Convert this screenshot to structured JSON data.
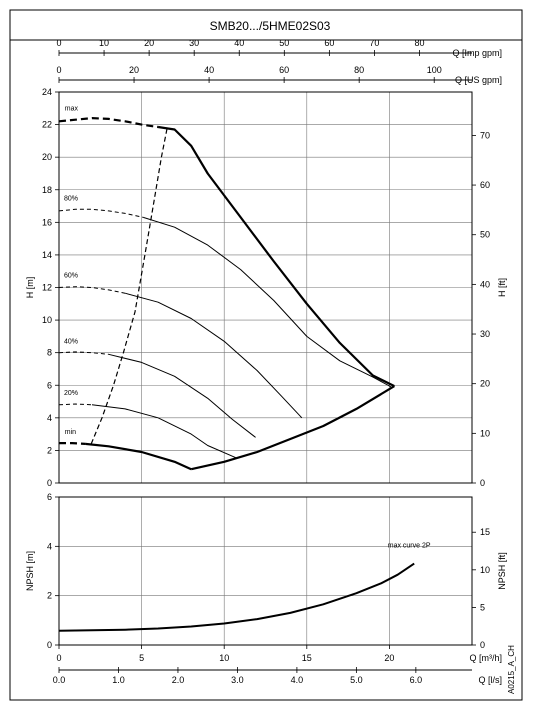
{
  "title": "SMB20.../5HME02S03",
  "code": "A0215_A_CH",
  "chart_data": [
    {
      "type": "line",
      "name": "head-chart",
      "x_axis_primary": {
        "label": "Q [m³/h]",
        "range": [
          0,
          25
        ],
        "ticks": [
          0,
          5,
          10,
          15,
          20
        ]
      },
      "top_axes": [
        {
          "label": "Q [Imp gpm]",
          "range": [
            0,
            91.65
          ],
          "ticks": [
            0,
            10,
            20,
            30,
            40,
            50,
            60,
            70,
            80
          ]
        },
        {
          "label": "Q [US gpm]",
          "range": [
            0,
            110.07
          ],
          "ticks": [
            0,
            20,
            40,
            60,
            80,
            100
          ]
        }
      ],
      "y_axis": {
        "label": "H [m]",
        "range": [
          0,
          24
        ],
        "ticks": [
          0,
          2,
          4,
          6,
          8,
          10,
          12,
          14,
          16,
          18,
          20,
          22,
          24
        ]
      },
      "y_axis_right": {
        "label": "H [ft]",
        "range": [
          0,
          78.74
        ],
        "ticks": [
          0,
          10,
          20,
          30,
          40,
          50,
          60,
          70
        ]
      },
      "grid": true,
      "series": [
        {
          "name": "max",
          "style": "thick",
          "dashed_points": [
            [
              0,
              22.2
            ],
            [
              1,
              22.3
            ],
            [
              2,
              22.4
            ],
            [
              3,
              22.35
            ],
            [
              4,
              22.2
            ],
            [
              5,
              22.0
            ],
            [
              6,
              21.85
            ]
          ],
          "points": [
            [
              6,
              21.85
            ],
            [
              7,
              21.7
            ],
            [
              8,
              20.7
            ],
            [
              9,
              19.0
            ],
            [
              11,
              16.3
            ],
            [
              13,
              13.6
            ],
            [
              15,
              11.0
            ],
            [
              17,
              8.6
            ],
            [
              19,
              6.6
            ],
            [
              20.3,
              5.95
            ]
          ]
        },
        {
          "name": "80%",
          "style": "thin",
          "dashed_points": [
            [
              0,
              16.7
            ],
            [
              1,
              16.8
            ],
            [
              2,
              16.8
            ],
            [
              3,
              16.7
            ],
            [
              4,
              16.55
            ],
            [
              5.1,
              16.3
            ]
          ],
          "points": [
            [
              5.1,
              16.3
            ],
            [
              7,
              15.7
            ],
            [
              9,
              14.6
            ],
            [
              11,
              13.1
            ],
            [
              13,
              11.2
            ],
            [
              15,
              9.0
            ],
            [
              17,
              7.5
            ],
            [
              19,
              6.5
            ],
            [
              20.1,
              5.9
            ]
          ]
        },
        {
          "name": "60%",
          "style": "thin",
          "dashed_points": [
            [
              0,
              12.0
            ],
            [
              1,
              12.05
            ],
            [
              2,
              12.0
            ],
            [
              3,
              11.85
            ],
            [
              4,
              11.65
            ]
          ],
          "points": [
            [
              4,
              11.65
            ],
            [
              6,
              11.1
            ],
            [
              8,
              10.1
            ],
            [
              10,
              8.7
            ],
            [
              12,
              6.9
            ],
            [
              13.5,
              5.3
            ],
            [
              14.7,
              4.0
            ]
          ]
        },
        {
          "name": "40%",
          "style": "thin",
          "dashed_points": [
            [
              0,
              8.0
            ],
            [
              1,
              8.05
            ],
            [
              2,
              8.0
            ],
            [
              3,
              7.9
            ]
          ],
          "points": [
            [
              3,
              7.9
            ],
            [
              5,
              7.4
            ],
            [
              7,
              6.55
            ],
            [
              9,
              5.2
            ],
            [
              10.5,
              3.9
            ],
            [
              11.9,
              2.8
            ]
          ]
        },
        {
          "name": "20%",
          "style": "thin",
          "dashed_points": [
            [
              0,
              4.8
            ],
            [
              1,
              4.85
            ],
            [
              2,
              4.8
            ]
          ],
          "points": [
            [
              2,
              4.8
            ],
            [
              4,
              4.55
            ],
            [
              6,
              4.0
            ],
            [
              8,
              3.0
            ],
            [
              9,
              2.3
            ],
            [
              10.7,
              1.55
            ]
          ]
        },
        {
          "name": "min",
          "style": "thick",
          "dashed_points": [
            [
              0,
              2.45
            ],
            [
              0.8,
              2.45
            ],
            [
              1.6,
              2.4
            ]
          ],
          "points": [
            [
              1.6,
              2.4
            ],
            [
              3,
              2.25
            ],
            [
              5,
              1.9
            ],
            [
              7,
              1.3
            ],
            [
              8,
              0.85
            ]
          ]
        },
        {
          "name": "lower-limit",
          "style": "thick",
          "points": [
            [
              8,
              0.85
            ],
            [
              10,
              1.3
            ],
            [
              12,
              1.9
            ],
            [
              14,
              2.7
            ],
            [
              16,
              3.5
            ],
            [
              18,
              4.55
            ],
            [
              20.3,
              5.95
            ]
          ]
        },
        {
          "name": "efficiency-limit",
          "style": "dashed",
          "points": [
            [
              1.95,
              2.4
            ],
            [
              2.6,
              4.0
            ],
            [
              3.3,
              6.0
            ],
            [
              3.9,
              8.0
            ],
            [
              4.6,
              10.5
            ],
            [
              5.2,
              14.0
            ],
            [
              5.7,
              17.0
            ],
            [
              6.2,
              20.0
            ],
            [
              6.55,
              21.8
            ]
          ]
        }
      ],
      "labels": [
        {
          "text": "max",
          "x": 0.35,
          "y": 22.85
        },
        {
          "text": "80%",
          "x": 0.3,
          "y": 17.35
        },
        {
          "text": "60%",
          "x": 0.3,
          "y": 12.6
        },
        {
          "text": "40%",
          "x": 0.3,
          "y": 8.55
        },
        {
          "text": "20%",
          "x": 0.3,
          "y": 5.4
        },
        {
          "text": "min",
          "x": 0.35,
          "y": 3.0
        }
      ]
    },
    {
      "type": "line",
      "name": "npsh-chart",
      "x_axis_primary": {
        "label": "Q [m³/h]",
        "range": [
          0,
          25
        ],
        "ticks": [
          0,
          5,
          10,
          15,
          20
        ]
      },
      "x_axis_secondary": {
        "label": "Q [l/s]",
        "range": [
          0,
          6.944
        ],
        "ticks": [
          "0.0",
          "1.0",
          "2.0",
          "3.0",
          "4.0",
          "5.0",
          "6.0"
        ]
      },
      "y_axis": {
        "label": "NPSH [m]",
        "range": [
          0,
          6
        ],
        "ticks": [
          0,
          2,
          4,
          6
        ]
      },
      "y_axis_right": {
        "label": "NPSH [ft]",
        "range": [
          0,
          19.685
        ],
        "ticks": [
          0,
          5,
          10,
          15
        ]
      },
      "grid": true,
      "series": [
        {
          "name": "max curve 2P",
          "points": [
            [
              0,
              0.58
            ],
            [
              2,
              0.6
            ],
            [
              4,
              0.62
            ],
            [
              6,
              0.67
            ],
            [
              8,
              0.75
            ],
            [
              10,
              0.87
            ],
            [
              12,
              1.05
            ],
            [
              14,
              1.3
            ],
            [
              16,
              1.65
            ],
            [
              18,
              2.1
            ],
            [
              19.5,
              2.5
            ],
            [
              20.5,
              2.85
            ],
            [
              21.5,
              3.3
            ]
          ]
        }
      ],
      "labels": [
        {
          "text": "max curve 2P",
          "x": 19.9,
          "y": 3.95
        }
      ]
    }
  ]
}
